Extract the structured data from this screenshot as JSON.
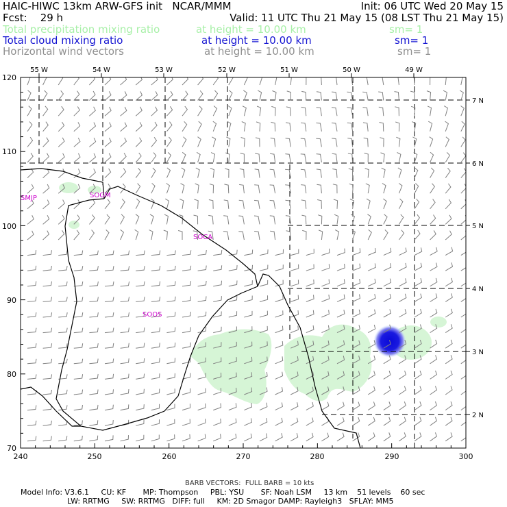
{
  "header": {
    "line1_left": "HAIC-HIWC 13km ARW-GFS init   NCAR/MMM",
    "line1_right": "Init: 06 UTC Wed 20 May 15",
    "line2_left": "Fcst:    29 h",
    "line2_right": "Valid: 11 UTC Thu 21 May 15 (08 LST Thu 21 May 15)",
    "fields": [
      {
        "name": "Total precipitation mixing ratio",
        "height": "at height = 10.00 km",
        "sm": "sm= 1",
        "color": "#a8f0a8"
      },
      {
        "name": "Total cloud mixing ratio",
        "height": "at height = 10.00 km",
        "sm": "sm= 1",
        "color": "#1414d2"
      },
      {
        "name": "Horizontal wind vectors",
        "height": "at height = 10.00 km",
        "sm": "sm= 1",
        "color": "#909090"
      }
    ]
  },
  "map": {
    "x_ticks": [
      "240",
      "250",
      "260",
      "270",
      "280",
      "290",
      "300"
    ],
    "y_ticks": [
      "70",
      "80",
      "90",
      "100",
      "110",
      "120"
    ],
    "lon_labels": [
      "55 W",
      "54 W",
      "53 W",
      "52 W",
      "51 W",
      "50 W",
      "49 W"
    ],
    "lat_labels": [
      "7 N",
      "6 N",
      "5 N",
      "4 N",
      "3 N",
      "2 N"
    ],
    "stations": [
      "SMJP",
      "SOGM",
      "SOCA",
      "SOOS"
    ],
    "station_color": "#cc00cc",
    "precip_color": "#d6f5d6",
    "cloud_color": "#1414d2"
  },
  "footer": {
    "barb_note": "BARB VECTORS:  FULL BARB = 10 kts",
    "model_line1": "Model Info: V3.6.1     CU: KF       MP: Thompson     PBL: YSU       SF: Noah LSM     13 km    51 levels    60 sec",
    "model_line2": "LW: RRTMG     SW: RRTMG   DIFF: full     KM: 2D Smagor DAMP: Rayleigh3   SFLAY: MM5"
  }
}
